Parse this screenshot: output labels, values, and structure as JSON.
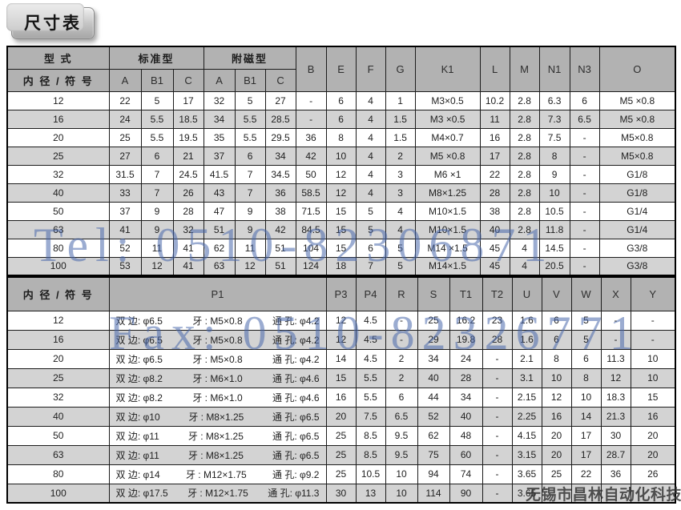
{
  "page_title": "尺寸表",
  "watermarks": {
    "tel": "Tel: 0510-82306871",
    "fax": "Fax: 0510-82326771",
    "company": "无锡市昌林自动化科技",
    "blue_color": "#4868ac",
    "gray_color": "#303030"
  },
  "table1": {
    "header": {
      "type_label": "型 式",
      "bore_label": "内 径 / 符 号",
      "standard_label": "标准型",
      "magnet_label": "附磁型",
      "sub_cols": [
        "A",
        "B1",
        "C",
        "A",
        "B1",
        "C"
      ],
      "single_cols": [
        "B",
        "E",
        "F",
        "G",
        "K1",
        "L",
        "M",
        "N1",
        "N3",
        "O"
      ]
    },
    "rows": [
      {
        "bore": "12",
        "cells": [
          "22",
          "5",
          "17",
          "32",
          "5",
          "27",
          "-",
          "6",
          "4",
          "1",
          "M3×0.5",
          "10.2",
          "2.8",
          "6.3",
          "6",
          "M5 ×0.8"
        ]
      },
      {
        "bore": "16",
        "cells": [
          "24",
          "5.5",
          "18.5",
          "34",
          "5.5",
          "28.5",
          "-",
          "6",
          "4",
          "1.5",
          "M3 ×0.5",
          "11",
          "2.8",
          "7.3",
          "6.5",
          "M5 ×0.8"
        ]
      },
      {
        "bore": "20",
        "cells": [
          "25",
          "5.5",
          "19.5",
          "35",
          "5.5",
          "29.5",
          "36",
          "8",
          "4",
          "1.5",
          "M4×0.7",
          "16",
          "2.8",
          "7.5",
          "-",
          "M5×0.8"
        ]
      },
      {
        "bore": "25",
        "cells": [
          "27",
          "6",
          "21",
          "37",
          "6",
          "34",
          "42",
          "10",
          "4",
          "2",
          "M5 ×0.8",
          "17",
          "2.8",
          "8",
          "-",
          "M5×0.8"
        ]
      },
      {
        "bore": "32",
        "cells": [
          "31.5",
          "7",
          "24.5",
          "41.5",
          "7",
          "34.5",
          "50",
          "12",
          "4",
          "3",
          "M6 ×1",
          "22",
          "2.8",
          "9",
          "-",
          "G1/8"
        ]
      },
      {
        "bore": "40",
        "cells": [
          "33",
          "7",
          "26",
          "43",
          "7",
          "36",
          "58.5",
          "12",
          "4",
          "3",
          "M8×1.25",
          "28",
          "2.8",
          "10",
          "-",
          "G1/8"
        ]
      },
      {
        "bore": "50",
        "cells": [
          "37",
          "9",
          "28",
          "47",
          "9",
          "38",
          "71.5",
          "15",
          "5",
          "4",
          "M10×1.5",
          "38",
          "2.8",
          "10.5",
          "-",
          "G1/4"
        ]
      },
      {
        "bore": "63",
        "cells": [
          "41",
          "9",
          "32",
          "51",
          "9",
          "42",
          "84.5",
          "15",
          "5",
          "4",
          "M10×1.5",
          "40",
          "2.8",
          "11.8",
          "-",
          "G1/4"
        ]
      },
      {
        "bore": "80",
        "cells": [
          "52",
          "11",
          "41",
          "62",
          "11",
          "51",
          "104",
          "15",
          "6",
          "5",
          "M14 ×1.5",
          "45",
          "4",
          "14.5",
          "-",
          "G3/8"
        ]
      },
      {
        "bore": "100",
        "cells": [
          "53",
          "12",
          "41",
          "63",
          "12",
          "51",
          "124",
          "18",
          "7",
          "5",
          "M14×1.5",
          "45",
          "4",
          "20.5",
          "-",
          "G3/8"
        ]
      }
    ]
  },
  "table2": {
    "header": {
      "bore_label": "内 径 / 符 号",
      "p1_label": "P1",
      "cols": [
        "P3",
        "P4",
        "R",
        "S",
        "T1",
        "T2",
        "U",
        "V",
        "W",
        "X",
        "Y"
      ]
    },
    "rows": [
      {
        "bore": "12",
        "p1": {
          "side": "双 边: φ6.5",
          "thread": "牙 : M5×0.8",
          "hole": "通 孔: φ4.2"
        },
        "cells": [
          "12",
          "4.5",
          "-",
          "25",
          "16.2",
          "23",
          "1.6",
          "6",
          "5",
          "-",
          "-"
        ]
      },
      {
        "bore": "16",
        "p1": {
          "side": "双 边: φ6.5",
          "thread": "牙 : M5×0.8",
          "hole": "通 孔: φ4.2"
        },
        "cells": [
          "12",
          "4.5",
          "-",
          "29",
          "19.8",
          "28",
          "1.6",
          "6",
          "5",
          "-",
          "-"
        ]
      },
      {
        "bore": "20",
        "p1": {
          "side": "双 边: φ6.5",
          "thread": "牙 : M5×0.8",
          "hole": "通 孔: φ4.2"
        },
        "cells": [
          "14",
          "4.5",
          "2",
          "34",
          "24",
          "-",
          "2.1",
          "8",
          "6",
          "11.3",
          "10"
        ]
      },
      {
        "bore": "25",
        "p1": {
          "side": "双 边: φ8.2",
          "thread": "牙 : M6×1.0",
          "hole": "通 孔: φ4.6"
        },
        "cells": [
          "15",
          "5.5",
          "2",
          "40",
          "28",
          "-",
          "3.1",
          "10",
          "8",
          "12",
          "10"
        ]
      },
      {
        "bore": "32",
        "p1": {
          "side": "双 边: φ8.2",
          "thread": "牙 : M6×1.0",
          "hole": "通 孔: φ4.6"
        },
        "cells": [
          "16",
          "5.5",
          "6",
          "44",
          "34",
          "-",
          "2.15",
          "12",
          "10",
          "18.3",
          "15"
        ]
      },
      {
        "bore": "40",
        "p1": {
          "side": "双 边: φ10",
          "thread": "牙 : M8×1.25",
          "hole": "通 孔: φ6.5"
        },
        "cells": [
          "20",
          "7.5",
          "6.5",
          "52",
          "40",
          "-",
          "2.25",
          "16",
          "14",
          "21.3",
          "16"
        ]
      },
      {
        "bore": "50",
        "p1": {
          "side": "双 边: φ11",
          "thread": "牙 : M8×1.25",
          "hole": "通 孔: φ6.5"
        },
        "cells": [
          "25",
          "8.5",
          "9.5",
          "62",
          "48",
          "-",
          "4.15",
          "20",
          "17",
          "30",
          "20"
        ]
      },
      {
        "bore": "63",
        "p1": {
          "side": "双 边: φ11",
          "thread": "牙 : M8×1.25",
          "hole": "通 孔: φ6.5"
        },
        "cells": [
          "25",
          "8.5",
          "9.5",
          "75",
          "60",
          "-",
          "3.15",
          "20",
          "17",
          "28.7",
          "20"
        ]
      },
      {
        "bore": "80",
        "p1": {
          "side": "双 边: φ14",
          "thread": "牙 : M12×1.75",
          "hole": "通 孔: φ9.2"
        },
        "cells": [
          "25",
          "10.5",
          "10",
          "94",
          "74",
          "-",
          "3.65",
          "25",
          "22",
          "36",
          "26"
        ]
      },
      {
        "bore": "100",
        "p1": {
          "side": "双 边: φ17.5",
          "thread": "牙 : M12×1.75",
          "hole": "通 孔: φ11.3"
        },
        "cells": [
          "30",
          "13",
          "10",
          "114",
          "90",
          "-",
          "3.65",
          "",
          "",
          "",
          ""
        ]
      }
    ]
  }
}
